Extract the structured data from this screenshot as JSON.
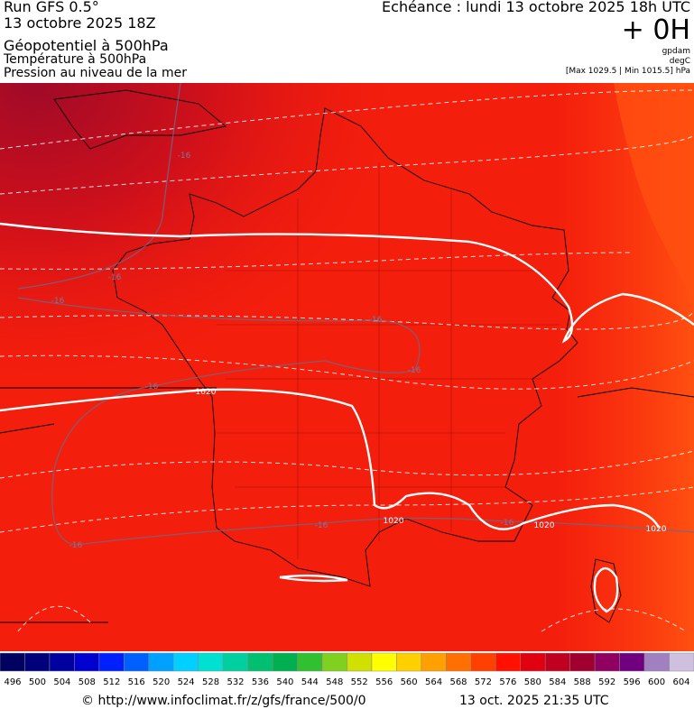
{
  "header": {
    "left": [
      "Run GFS 0.5°",
      "13 octobre 2025 18Z",
      "Géopotentiel à 500hPa",
      "Température à 500hPa",
      "Pression au niveau de la mer"
    ],
    "echeance": "Echéance : lundi 13 octobre 2025 18h UTC",
    "offset": "+ 0H",
    "units": [
      "gpdam",
      "degC",
      "[Max 1029.5 | Min 1015.5] hPa"
    ]
  },
  "map": {
    "isobar_labels": [
      "1020",
      "1020",
      "1020",
      "1020"
    ],
    "isotherm_labels": [
      "-16",
      "-16",
      "-16",
      "-16",
      "-16",
      "-16",
      "-16",
      "-16",
      "-16"
    ]
  },
  "colorbar": {
    "labels": [
      "496",
      "500",
      "504",
      "508",
      "512",
      "516",
      "520",
      "524",
      "528",
      "532",
      "536",
      "540",
      "544",
      "548",
      "552",
      "556",
      "560",
      "564",
      "568",
      "572",
      "576",
      "580",
      "584",
      "588",
      "592",
      "596",
      "600",
      "604"
    ],
    "colors": [
      "#000060",
      "#00007a",
      "#0000a0",
      "#0000d0",
      "#0020ff",
      "#0060ff",
      "#00a0ff",
      "#00d0ff",
      "#00e0d0",
      "#00d0a0",
      "#00c070",
      "#00b050",
      "#30c030",
      "#80d020",
      "#d0e000",
      "#ffff00",
      "#ffd000",
      "#ffa000",
      "#ff7000",
      "#ff4000",
      "#ff1000",
      "#e00010",
      "#c00020",
      "#a00030",
      "#900060",
      "#700080",
      "#a080c0",
      "#d0c0e0"
    ]
  },
  "footer": {
    "source": "© http://www.infoclimat.fr/z/gfs/france/500/0",
    "generated": "13 oct. 2025 21:35 UTC"
  }
}
